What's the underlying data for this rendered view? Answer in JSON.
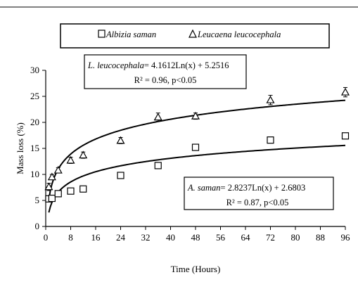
{
  "chart_data": {
    "type": "scatter",
    "xlabel": "Time (Hours)",
    "ylabel": "Mass loss (%)",
    "xlim": [
      0,
      96
    ],
    "ylim": [
      0,
      30
    ],
    "xticks": [
      0,
      8,
      16,
      24,
      32,
      40,
      48,
      56,
      64,
      72,
      80,
      88,
      96
    ],
    "yticks": [
      0,
      5,
      10,
      15,
      20,
      25,
      30
    ],
    "grid": false,
    "legend_position": "top",
    "series": [
      {
        "name": "Albizia saman",
        "marker": "square",
        "x": [
          1,
          2,
          4,
          8,
          12,
          24,
          36,
          48,
          72,
          96
        ],
        "y": [
          5.3,
          5.4,
          6.3,
          6.8,
          7.2,
          9.8,
          11.7,
          15.2,
          16.6,
          17.4
        ],
        "fit": {
          "type": "log",
          "a": 2.8237,
          "b": 2.6803
        },
        "equation": {
          "species": "A. saman",
          "formula": "= 2.8237Ln(x) + 2.6803",
          "stats": "R² = 0.87, p<0.05"
        }
      },
      {
        "name": "Leucaena leucocephala",
        "marker": "triangle",
        "x": [
          1,
          2,
          4,
          8,
          12,
          24,
          36,
          48,
          72,
          96
        ],
        "y": [
          7.6,
          9.5,
          10.8,
          12.7,
          13.7,
          16.5,
          21.0,
          21.2,
          24.3,
          25.8
        ],
        "error": [
          0.7,
          0.5,
          0.5,
          0.6,
          0.6,
          0.6,
          0.8,
          0.6,
          0.9,
          0.9
        ],
        "fit": {
          "type": "log",
          "a": 4.1612,
          "b": 5.2516
        },
        "equation": {
          "species": "L. leucocephala",
          "formula": "= 4.1612Ln(x) + 5.2516",
          "stats": "R² = 0.96, p<0.05"
        }
      }
    ]
  }
}
